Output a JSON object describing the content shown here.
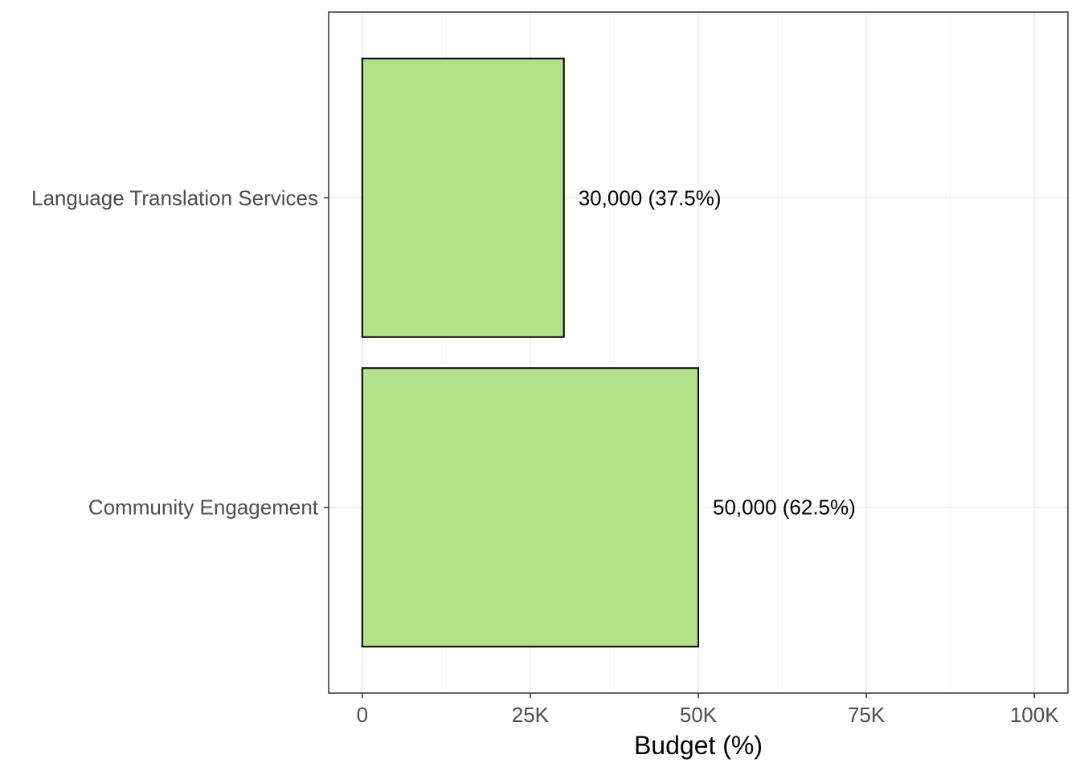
{
  "chart_data": {
    "type": "bar",
    "orientation": "horizontal",
    "title": "",
    "xlabel": "Budget (%)",
    "ylabel": "",
    "categories": [
      "Community Engagement",
      "Language Translation Services"
    ],
    "values": [
      50000,
      30000
    ],
    "data_labels": [
      "50,000 (62.5%)",
      "30,000 (37.5%)"
    ],
    "xlim": [
      -5000,
      105000
    ],
    "xticks": [
      0,
      25000,
      50000,
      75000,
      100000
    ],
    "xtick_labels": [
      "0",
      "25K",
      "50K",
      "75K",
      "100K"
    ],
    "grid": true,
    "bar_color": "#b3e08a",
    "bar_edge_color": "#000000",
    "grid_major_color": "#ebebeb",
    "grid_minor_color": "#f2f2f2",
    "legend": "none"
  }
}
